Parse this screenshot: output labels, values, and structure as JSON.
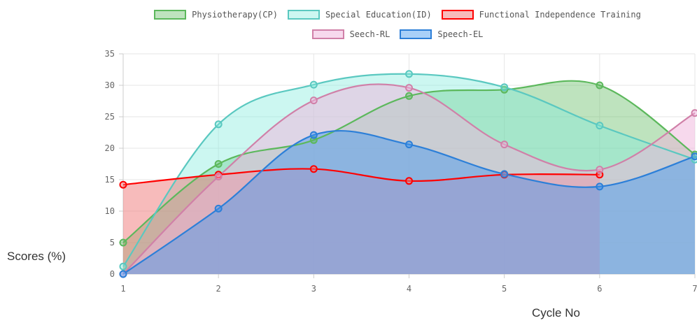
{
  "chart_data": {
    "type": "area",
    "x": [
      1,
      2,
      3,
      4,
      5,
      6,
      7
    ],
    "xlabel": "Cycle No",
    "ylabel": "Scores (%)",
    "ylim": [
      0,
      35
    ],
    "yticks": [
      0,
      5,
      10,
      15,
      20,
      25,
      30,
      35
    ],
    "grid": true,
    "legend_position": "top",
    "series": [
      {
        "name": "Physiotherapy(CP)",
        "values": [
          5,
          17.5,
          21.3,
          28.3,
          29.3,
          30,
          19
        ],
        "stroke": "#5cb85c",
        "fill": "rgba(92,184,92,0.4)"
      },
      {
        "name": "Special Education(ID)",
        "values": [
          1.2,
          23.8,
          30.1,
          31.8,
          29.7,
          23.6,
          18.2
        ],
        "stroke": "#5ac8c0",
        "fill": "rgba(127,236,220,0.4)"
      },
      {
        "name": "Functional Independence Training",
        "values": [
          14.2,
          15.8,
          16.7,
          14.8,
          15.8,
          15.8,
          null
        ],
        "stroke": "#ff0000",
        "fill": "rgba(240,120,120,0.5)"
      },
      {
        "name": "Seech-RL",
        "values": [
          0,
          15.5,
          27.6,
          29.6,
          20.6,
          16.6,
          25.6
        ],
        "stroke": "#d080a8",
        "fill": "rgba(240,180,220,0.5)"
      },
      {
        "name": "Speech-EL",
        "values": [
          0,
          10.4,
          22.1,
          20.6,
          15.9,
          13.9,
          18.7
        ],
        "stroke": "#2c7fd8",
        "fill": "rgba(64,150,240,0.45)"
      }
    ]
  }
}
